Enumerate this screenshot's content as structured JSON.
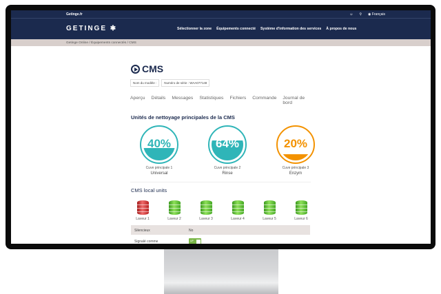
{
  "topbar": {
    "site": "Getinge.fr",
    "language": "Français"
  },
  "nav": {
    "logo": "GETINGE",
    "items": [
      "Sélectionner la zone",
      "Équipements connecté",
      "Système d'information des services",
      "À propos de nous"
    ]
  },
  "breadcrumb": "Getinge Online / Équipements connectés / CMS",
  "page": {
    "title": "CMS",
    "model_label": "Nom du modèle :",
    "serial_label": "Numéro de série : WAA077148"
  },
  "tabs": [
    "Aperçu",
    "Détails",
    "Messages",
    "Statistiques",
    "Fichiers",
    "Commande",
    "Journal de bord"
  ],
  "main_units": {
    "heading": "Unités de nettoyage principales de la CMS",
    "gauges": [
      {
        "pct_label": "40%",
        "value": 40,
        "label": "Cuve principale 1",
        "name": "Universal",
        "color": "#2fb5b8"
      },
      {
        "pct_label": "64%",
        "value": 64,
        "label": "Cuve principale 2",
        "name": "Rinse",
        "color": "#2fb5b8"
      },
      {
        "pct_label": "20%",
        "value": 20,
        "label": "Cuve principale 3",
        "name": "Enzym",
        "color": "#f39200"
      }
    ]
  },
  "local_units": {
    "heading": "CMS local units",
    "units": [
      {
        "label": "Laveur 1",
        "status": "red"
      },
      {
        "label": "Laveur 2",
        "status": "green"
      },
      {
        "label": "Laveur 3",
        "status": "green"
      },
      {
        "label": "Laveur 4",
        "status": "green"
      },
      {
        "label": "Laveur 5",
        "status": "green"
      },
      {
        "label": "Laveur 6",
        "status": "green"
      }
    ]
  },
  "props": {
    "silent_label": "Silencieux",
    "silent_value": "No",
    "flagged_label": "Signalé comme",
    "toggle_label": "UP"
  }
}
